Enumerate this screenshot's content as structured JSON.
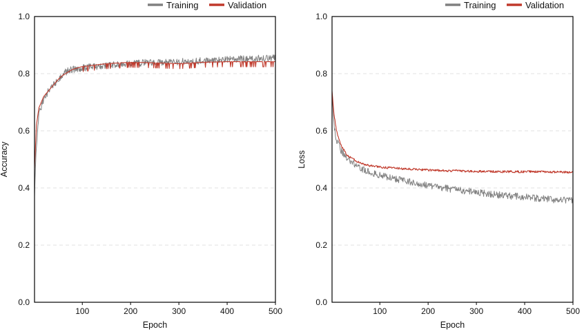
{
  "chart_data": [
    {
      "type": "line",
      "panel": "accuracy",
      "title": "",
      "xlabel": "Epoch",
      "ylabel": "Accuracy",
      "xlim": [
        1,
        500
      ],
      "ylim": [
        0.0,
        1.0
      ],
      "xticks": [
        "100",
        "200",
        "300",
        "400",
        "500"
      ],
      "yticks": [
        "0.0",
        "0.2",
        "0.4",
        "0.6",
        "0.8",
        "1.0"
      ],
      "grid": "horizontal dashed",
      "legend_position": "top-right",
      "series": [
        {
          "name": "Training",
          "color": "#808080",
          "x": [
            1,
            5,
            10,
            20,
            30,
            40,
            50,
            60,
            70,
            80,
            100,
            125,
            150,
            200,
            250,
            300,
            350,
            400,
            450,
            500
          ],
          "y": [
            0.38,
            0.55,
            0.66,
            0.71,
            0.74,
            0.76,
            0.78,
            0.8,
            0.81,
            0.815,
            0.82,
            0.825,
            0.83,
            0.835,
            0.84,
            0.842,
            0.845,
            0.85,
            0.852,
            0.855
          ]
        },
        {
          "name": "Validation",
          "color": "#c0392b",
          "x": [
            1,
            5,
            10,
            20,
            30,
            40,
            50,
            60,
            70,
            80,
            100,
            125,
            150,
            200,
            250,
            300,
            350,
            400,
            450,
            500
          ],
          "y": [
            0.47,
            0.62,
            0.68,
            0.72,
            0.74,
            0.76,
            0.78,
            0.795,
            0.805,
            0.815,
            0.825,
            0.83,
            0.835,
            0.84,
            0.838,
            0.835,
            0.84,
            0.842,
            0.842,
            0.842
          ]
        }
      ]
    },
    {
      "type": "line",
      "panel": "loss",
      "title": "",
      "xlabel": "Epoch",
      "ylabel": "Loss",
      "xlim": [
        1,
        500
      ],
      "ylim": [
        0.0,
        1.0
      ],
      "xticks": [
        "100",
        "200",
        "300",
        "400",
        "500"
      ],
      "yticks": [
        "0.0",
        "0.2",
        "0.4",
        "0.6",
        "0.8",
        "1.0"
      ],
      "grid": "horizontal dashed",
      "legend_position": "top-right",
      "series": [
        {
          "name": "Training",
          "color": "#808080",
          "x": [
            1,
            5,
            10,
            20,
            30,
            40,
            50,
            60,
            70,
            80,
            100,
            125,
            150,
            200,
            250,
            300,
            350,
            400,
            450,
            500
          ],
          "y": [
            0.72,
            0.62,
            0.57,
            0.53,
            0.51,
            0.495,
            0.48,
            0.47,
            0.462,
            0.455,
            0.445,
            0.435,
            0.425,
            0.41,
            0.395,
            0.385,
            0.375,
            0.368,
            0.36,
            0.355
          ]
        },
        {
          "name": "Validation",
          "color": "#c0392b",
          "x": [
            1,
            5,
            10,
            20,
            30,
            40,
            50,
            60,
            70,
            80,
            100,
            125,
            150,
            200,
            250,
            300,
            350,
            400,
            450,
            500
          ],
          "y": [
            0.74,
            0.66,
            0.6,
            0.55,
            0.52,
            0.505,
            0.495,
            0.487,
            0.482,
            0.478,
            0.473,
            0.47,
            0.467,
            0.463,
            0.46,
            0.458,
            0.457,
            0.457,
            0.456,
            0.455
          ]
        }
      ]
    }
  ]
}
